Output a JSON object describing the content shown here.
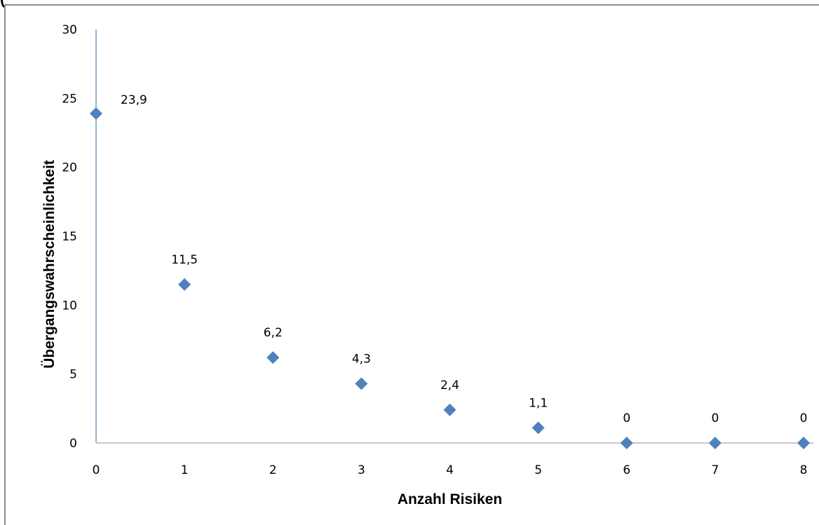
{
  "page_fragment": "(",
  "colors": {
    "marker": "#4f81bd",
    "axis": "#4f81bd",
    "baseline": "#a6a6a6",
    "frame": "#8c8c8c"
  },
  "chart_data": {
    "type": "scatter",
    "x": [
      0,
      1,
      2,
      3,
      4,
      5,
      6,
      7,
      8
    ],
    "y": [
      23.9,
      11.5,
      6.2,
      4.3,
      2.4,
      1.1,
      0,
      0,
      0
    ],
    "data_labels": [
      "23,9",
      "11,5",
      "6,2",
      "4,3",
      "2,4",
      "1,1",
      "0",
      "0",
      "0"
    ],
    "x_ticks": [
      "0",
      "1",
      "2",
      "3",
      "4",
      "5",
      "6",
      "7",
      "8"
    ],
    "y_ticks": [
      "0",
      "5",
      "10",
      "15",
      "20",
      "25",
      "30"
    ],
    "xlabel": "Anzahl Risiken",
    "ylabel": "Übergangswahrscheinlichkeit",
    "xlim": [
      0,
      8
    ],
    "ylim": [
      0,
      30
    ],
    "grid": false,
    "legend": "none",
    "marker": "diamond"
  }
}
